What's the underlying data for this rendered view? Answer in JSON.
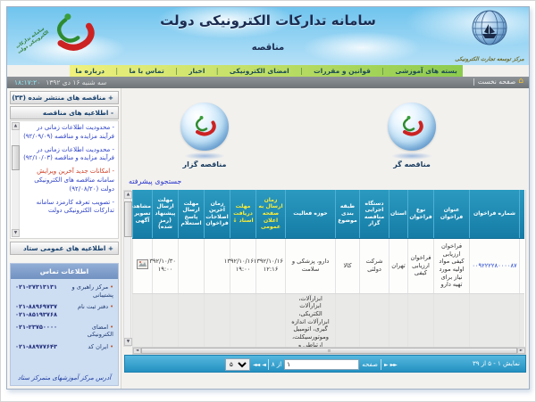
{
  "icons": {
    "home": "⌂",
    "arrow_up": "▲",
    "arrow_down": "▼",
    "left": "◄",
    "left_double": "◄◄",
    "right": "►",
    "right_double": "►►",
    "grip": "≡",
    "menu_separator": "|",
    "bullet": "•"
  },
  "colors": {
    "table_header_teal": "#1987b5",
    "header_yellow_text": "#ffee33",
    "pager_blue": "#2d9fd0",
    "link_blue": "#2a3fc4",
    "alert_red": "#cc3a1f",
    "menu_green": "#8ccb4e",
    "menu_yellow": "#f0f17d",
    "contact_bg": "#cdddf2",
    "contact_header": "#7e9dcb"
  },
  "header": {
    "title": "سامانه تدارکات الکترونیکی دولت",
    "subtitle": "مناقصه",
    "left_logo_caption": "سامانه تدارکات الکترونیکی دولت",
    "right_logo_caption": "مرکز توسعه تجارت الکترونیکی",
    "menu": [
      "بسته های آموزشی",
      "قوانین و مقررات",
      "امضای الکترونیکی",
      "اخبار",
      "تماس با ما",
      "درباره ما"
    ],
    "home_label": "صفحه نخست",
    "time": "۱۸:۱۷:۲۰",
    "date": "سه شنبه ۱۶ دی ۱۳۹۲"
  },
  "sidebar": {
    "published_tenders_label": "+ مناقصه های منتشر شده  (۳۳)",
    "tender_announcements_label": "- اطلاعیه های مناقصه",
    "announcements": [
      {
        "parts": [
          {
            "t": "- محدودیت اطلاعات زمانی در فرآیند مزایده و مناقصه (۹۲/۰۹/۰۹)",
            "red": false
          }
        ]
      },
      {
        "parts": [
          {
            "t": "- محدودیت اطلاعات زمانی در فرآیند مزایده و مناقصه (۹۲/۱۰/۰۳)",
            "red": false
          }
        ]
      },
      {
        "parts": [
          {
            "t": "- امکانات جدید آخرین ویرایش ",
            "red": true
          },
          {
            "t": "سامانه مناقصه های الکترونیکی دولت (۹۲/۰۸/۲۰)",
            "red": false
          }
        ]
      },
      {
        "parts": [
          {
            "t": "- تصویب تعرفه کارمزد سامانه تدارکات الکترونیکی دولت",
            "red": false
          }
        ]
      }
    ],
    "public_announcements_label": "+ اطلاعیه های عمومی ستاد",
    "contact": {
      "title": "اطلاعات تماس",
      "entries": [
        {
          "label": "مرکز راهبری و پشتیبانی",
          "phones": "۰۲۱-۲۷۳۱۳۱۳۱"
        },
        {
          "label": "دفتر ثبت نام",
          "phones": "۰۲۱-۸۸۹۶۹۷۳۷\n۰۲۱-۸۵۱۹۳۷۶۸"
        },
        {
          "label": "امضای الکترونیکی",
          "phones": "۰۲۱-۲۳۷۵۰۰۰۰"
        },
        {
          "label": "ایران کد",
          "phones": "۰۲۱-۸۸۹۷۷۶۴۳"
        }
      ],
      "address_link": "آدرس مرکز آموزشهای متمرکز ستاد"
    }
  },
  "main": {
    "tenderer_label": "مناقصه گزار",
    "bidder_label": "مناقصه گر",
    "advanced_search": "جستجوی پیشرفته",
    "table": {
      "headers": [
        {
          "label": "شماره فراخوان",
          "yellow": false
        },
        {
          "label": "عنوان فراخوان",
          "yellow": false
        },
        {
          "label": "نوع فراخوان",
          "yellow": false
        },
        {
          "label": "استان",
          "yellow": false
        },
        {
          "label": "دستگاه اجرایی مناقصه گزار",
          "yellow": false
        },
        {
          "label": "طبقه بندی موضوع",
          "yellow": false
        },
        {
          "label": "حوزه فعالیت",
          "yellow": false
        },
        {
          "label": "زمان ارسال به صفحه اعلان عمومی",
          "yellow": true
        },
        {
          "label": "مهلت دریافت اسناد ↓",
          "yellow": true
        },
        {
          "label": "زمان آخرین اصلاحات فراخوان",
          "yellow": false
        },
        {
          "label": "مهلت ارسال پاسخ استعلام",
          "yellow": false
        },
        {
          "label": "مهلت ارسال پیشنهاد (رمز شده)",
          "yellow": false
        },
        {
          "label": "مشاهده تصویر آگهی",
          "yellow": false
        }
      ],
      "rows": [
        {
          "cells": [
            "۰۰۹۲۲۲۲۸۰۰۰۰۸۷",
            "فراخوان ارزیابی کیفی مواد اولیه مورد نیاز برای تهیه دارو",
            "فراخوان ارزیابی کیفی",
            "تهران",
            "شرکت دولتی",
            "کالا",
            "دارو، پزشکی و سلامت",
            "۱۳۹۲/۱۰/۱۶\n۱۲:۱۶",
            "۱۳۹۲/۱۰/۱۶\n۱۹:۰۰",
            "",
            "",
            "۱۳۹۲/۱۰/۳۰\n۱۹:۰۰",
            ""
          ],
          "number_is_link": true,
          "has_ad_icon": true
        },
        {
          "cells": [
            "",
            "",
            "",
            "",
            "",
            "",
            "ابزارآلات، ابزارآلات الکتریکی، ابزارآلات اندازه گیری، اتومبیل وموتورسیکلت، ارتباطی و مخابراتی، اسباب بازی و سرگرمی، پلاستیک و لاستیک، ملزومات، پوشاک و",
            "",
            "",
            "",
            "",
            "",
            ""
          ],
          "number_is_link": false,
          "has_ad_icon": false
        }
      ]
    },
    "pager": {
      "showing": "نمایش ۱ - ۵ از ۳۹",
      "page_label": "صفحه",
      "of_label": "از ۸",
      "page_value": "۱",
      "page_size": "۵"
    }
  }
}
